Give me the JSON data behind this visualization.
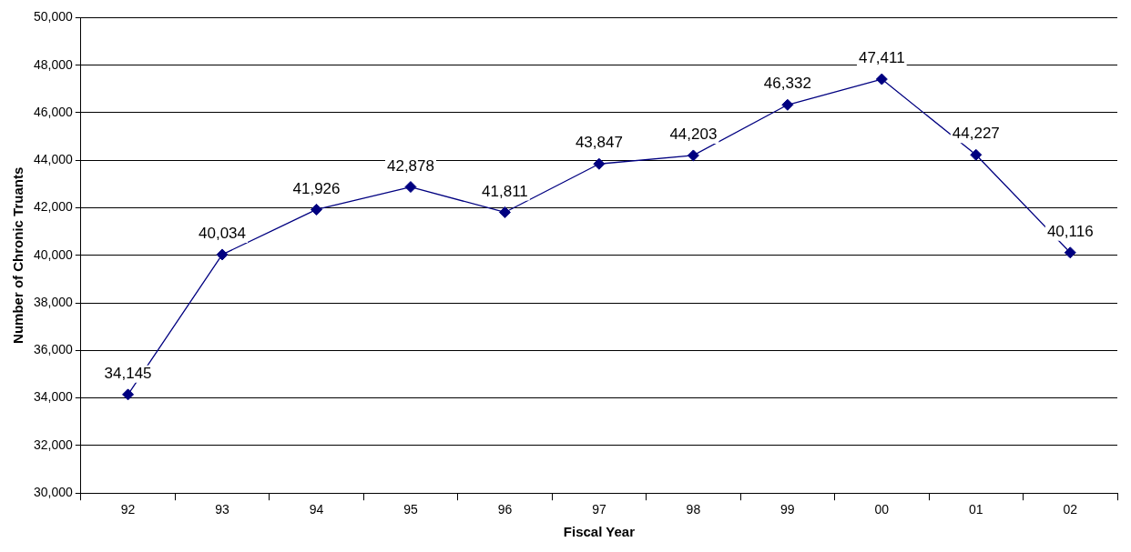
{
  "chart_data": {
    "type": "line",
    "xlabel": "Fiscal Year",
    "ylabel": "Number of Chronic Truants",
    "categories": [
      "92",
      "93",
      "94",
      "95",
      "96",
      "97",
      "98",
      "99",
      "00",
      "01",
      "02"
    ],
    "series": [
      {
        "color": "#000080",
        "values": [
          34145,
          40034,
          41926,
          42878,
          41811,
          43847,
          44203,
          46332,
          47411,
          44227,
          40116
        ],
        "value_labels": [
          "34,145",
          "40,034",
          "41,926",
          "42,878",
          "41,811",
          "43,847",
          "44,203",
          "46,332",
          "47,411",
          "44,227",
          "40,116"
        ]
      }
    ],
    "ylim": [
      30000,
      50000
    ],
    "yticks": [
      {
        "value": 30000,
        "label": "30,000"
      },
      {
        "value": 32000,
        "label": "32,000"
      },
      {
        "value": 34000,
        "label": "34,000"
      },
      {
        "value": 36000,
        "label": "36,000"
      },
      {
        "value": 38000,
        "label": "38,000"
      },
      {
        "value": 40000,
        "label": "40,000"
      },
      {
        "value": 42000,
        "label": "42,000"
      },
      {
        "value": 44000,
        "label": "44,000"
      },
      {
        "value": 46000,
        "label": "46,000"
      },
      {
        "value": 48000,
        "label": "48,000"
      },
      {
        "value": 50000,
        "label": "50,000"
      }
    ],
    "grid": "y",
    "legend": false,
    "marker": "diamond",
    "line_style": "solid"
  }
}
